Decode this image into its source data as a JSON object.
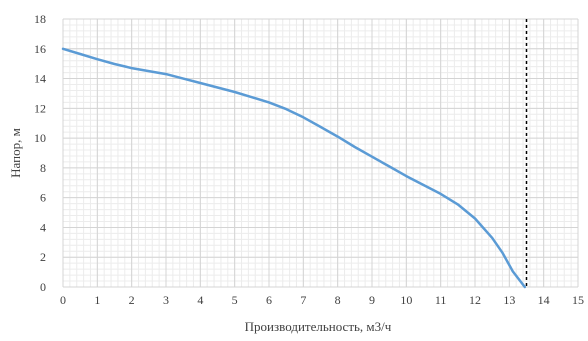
{
  "chart_data": {
    "type": "line",
    "title": "",
    "xlabel": "Производительность, м3/ч",
    "ylabel": "Напор, м",
    "xlim": [
      0,
      15
    ],
    "ylim": [
      0,
      18
    ],
    "x_ticks": [
      "0",
      "1",
      "2",
      "3",
      "4",
      "5",
      "6",
      "7",
      "8",
      "9",
      "10",
      "11",
      "12",
      "13",
      "14",
      "15"
    ],
    "y_ticks": [
      "0",
      "2",
      "4",
      "6",
      "8",
      "10",
      "12",
      "14",
      "16",
      "18"
    ],
    "x_minor_step": 0.2,
    "y_minor_step": 0.4,
    "grid": true,
    "legend": "none",
    "series": [
      {
        "color": "#5B9BD5",
        "points": [
          [
            0,
            16.0
          ],
          [
            0.5,
            15.65
          ],
          [
            1,
            15.3
          ],
          [
            1.5,
            14.98
          ],
          [
            2,
            14.7
          ],
          [
            2.5,
            14.5
          ],
          [
            3,
            14.3
          ],
          [
            3.5,
            14.0
          ],
          [
            4,
            13.7
          ],
          [
            4.5,
            13.4
          ],
          [
            5,
            13.1
          ],
          [
            5.5,
            12.75
          ],
          [
            6,
            12.4
          ],
          [
            6.5,
            11.95
          ],
          [
            7,
            11.4
          ],
          [
            7.5,
            10.75
          ],
          [
            8,
            10.1
          ],
          [
            8.5,
            9.4
          ],
          [
            9,
            8.75
          ],
          [
            9.5,
            8.1
          ],
          [
            10,
            7.45
          ],
          [
            10.5,
            6.85
          ],
          [
            11,
            6.25
          ],
          [
            11.5,
            5.55
          ],
          [
            12,
            4.6
          ],
          [
            12.5,
            3.3
          ],
          [
            12.8,
            2.3
          ],
          [
            13.1,
            1.05
          ],
          [
            13.45,
            0.0
          ]
        ]
      }
    ],
    "reference_line": {
      "x": 13.5,
      "style": "dotted",
      "color": "#000000"
    }
  }
}
